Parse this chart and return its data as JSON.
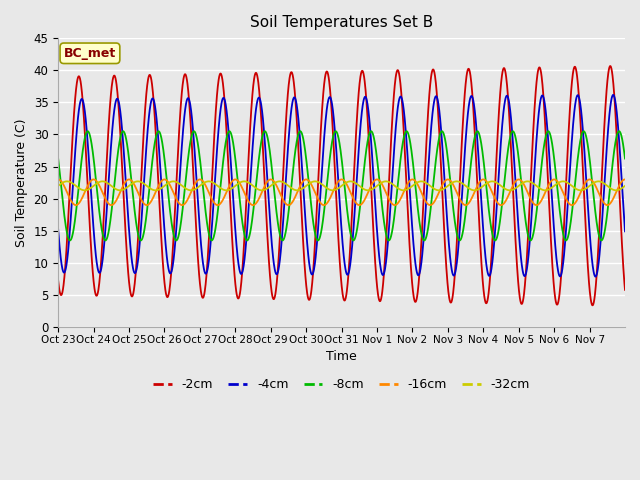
{
  "title": "Soil Temperatures Set B",
  "xlabel": "Time",
  "ylabel": "Soil Temperature (C)",
  "ylim": [
    0,
    45
  ],
  "yticks": [
    0,
    5,
    10,
    15,
    20,
    25,
    30,
    35,
    40,
    45
  ],
  "xtick_labels": [
    "Oct 23",
    "Oct 24",
    "Oct 25",
    "Oct 26",
    "Oct 27",
    "Oct 28",
    "Oct 29",
    "Oct 30",
    "Oct 31",
    "Nov 1",
    "Nov 2",
    "Nov 3",
    "Nov 4",
    "Nov 5",
    "Nov 6",
    "Nov 7"
  ],
  "series_labels": [
    "-2cm",
    "-4cm",
    "-8cm",
    "-16cm",
    "-32cm"
  ],
  "series_colors": [
    "#cc0000",
    "#0000cc",
    "#00bb00",
    "#ff8800",
    "#cccc00"
  ],
  "background_color": "#e8e8e8",
  "grid_color": "#ffffff",
  "annotation_text": "BC_met",
  "annotation_bg": "#ffffcc",
  "annotation_border": "#999900",
  "annotation_text_color": "#880000",
  "depth_params": {
    "-2cm": {
      "mean": 22.0,
      "amp": 17.0,
      "phase_hr": 8,
      "period_hr": 24,
      "amp_trend": 0.1
    },
    "-4cm": {
      "mean": 22.0,
      "amp": 13.5,
      "phase_hr": 10,
      "period_hr": 24,
      "amp_trend": 0.05
    },
    "-8cm": {
      "mean": 22.0,
      "amp": 8.5,
      "phase_hr": 14,
      "period_hr": 24,
      "amp_trend": 0.0
    },
    "-16cm": {
      "mean": 21.0,
      "amp": 2.0,
      "phase_hr": 18,
      "period_hr": 24,
      "amp_trend": 0.0
    },
    "-32cm": {
      "mean": 22.0,
      "amp": 0.7,
      "phase_hr": 0,
      "period_hr": 24,
      "amp_trend": 0.0
    }
  }
}
